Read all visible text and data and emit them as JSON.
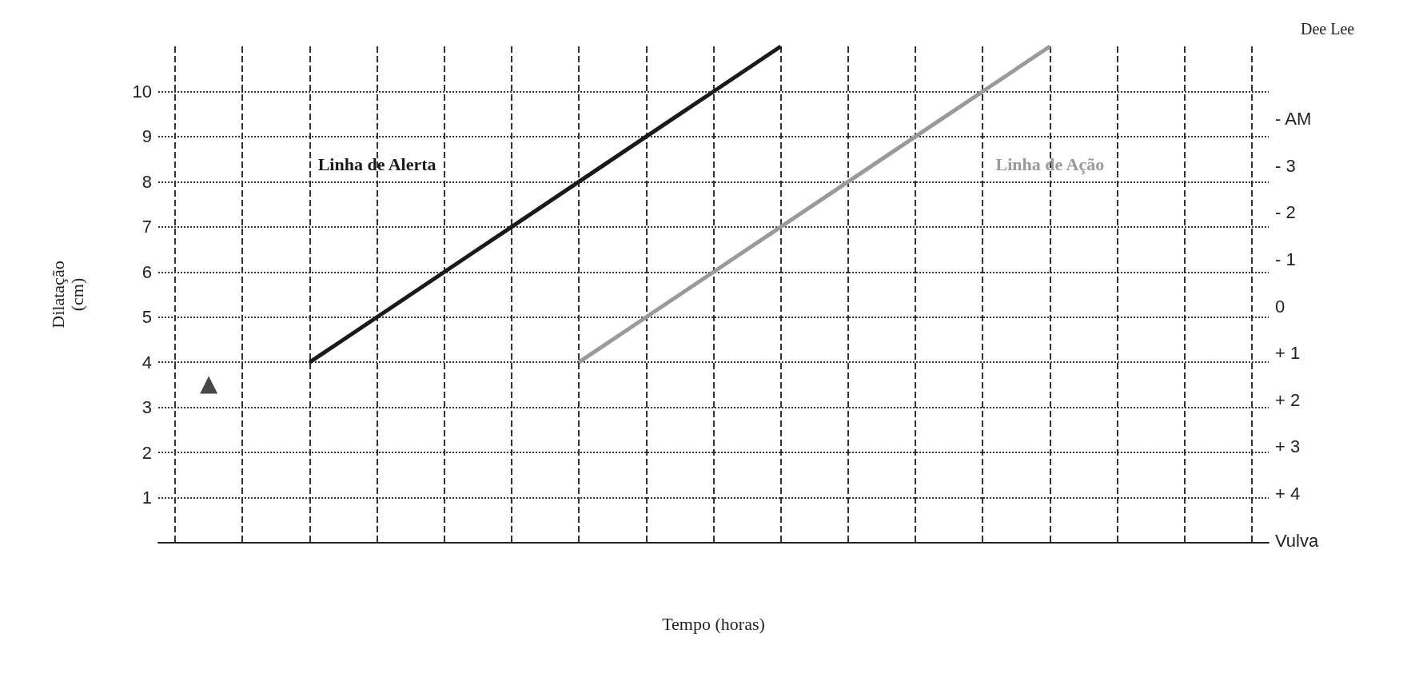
{
  "chart_data": {
    "type": "line",
    "xlabel": "Tempo (horas)",
    "ylabel": "Dilatação\n(cm)",
    "y2label": "Dee Lee",
    "categories": [
      null,
      null,
      null,
      null,
      null,
      null,
      null,
      null,
      null,
      null,
      null,
      null,
      null,
      null,
      null,
      null,
      null,
      null,
      null,
      null,
      null,
      null,
      null,
      null,
      null,
      null,
      null,
      null,
      null,
      null,
      null,
      null,
      null
    ],
    "ylim": [
      0,
      11
    ],
    "yticks": [
      1,
      2,
      3,
      4,
      5,
      6,
      7,
      8,
      9,
      10
    ],
    "y2lim": [
      5.05,
      -5.55
    ],
    "y2ticks": [
      {
        "value": 5,
        "label": "Vulva"
      },
      {
        "value": 4,
        "label": "+ 4"
      },
      {
        "value": 3,
        "label": "+ 3"
      },
      {
        "value": 2,
        "label": "+ 2"
      },
      {
        "value": 1,
        "label": "+ 1"
      },
      0,
      {
        "value": -1,
        "label": "- 1"
      },
      {
        "value": -2,
        "label": "- 2"
      },
      {
        "value": -3,
        "label": "- 3"
      },
      {
        "value": -4,
        "label": "- AM"
      }
    ],
    "grid": true,
    "series": [
      {
        "name": "Linha de Alerta",
        "color": "#1a1a1a",
        "values": [
          null,
          null,
          null,
          null,
          4,
          4.5,
          5,
          5.5,
          6,
          6.5,
          7,
          7.5,
          8,
          8.5,
          9,
          9.5,
          10,
          10.5,
          11,
          null,
          null,
          null,
          null,
          null,
          null,
          null,
          null,
          null,
          null,
          null,
          null,
          null,
          null
        ]
      },
      {
        "name": "Linha de Ação",
        "color": "#9a9a9a",
        "values": [
          null,
          null,
          null,
          null,
          null,
          null,
          null,
          null,
          null,
          null,
          null,
          null,
          4,
          4.5,
          5,
          5.5,
          6,
          6.5,
          7,
          7.5,
          8,
          8.5,
          9,
          9.5,
          10,
          10.5,
          11,
          null,
          null,
          null,
          null,
          null,
          null
        ]
      },
      {
        "type": "scatter",
        "color": "#1a1a1a",
        "marker": "triangle",
        "values": [
          null,
          3.5,
          null,
          null,
          null,
          null,
          null,
          null,
          null,
          null,
          null,
          null,
          null,
          null,
          null,
          null,
          null,
          null,
          null,
          null,
          null,
          null,
          null,
          null,
          null,
          null,
          null,
          null,
          null,
          null,
          null,
          null,
          null
        ]
      }
    ]
  }
}
